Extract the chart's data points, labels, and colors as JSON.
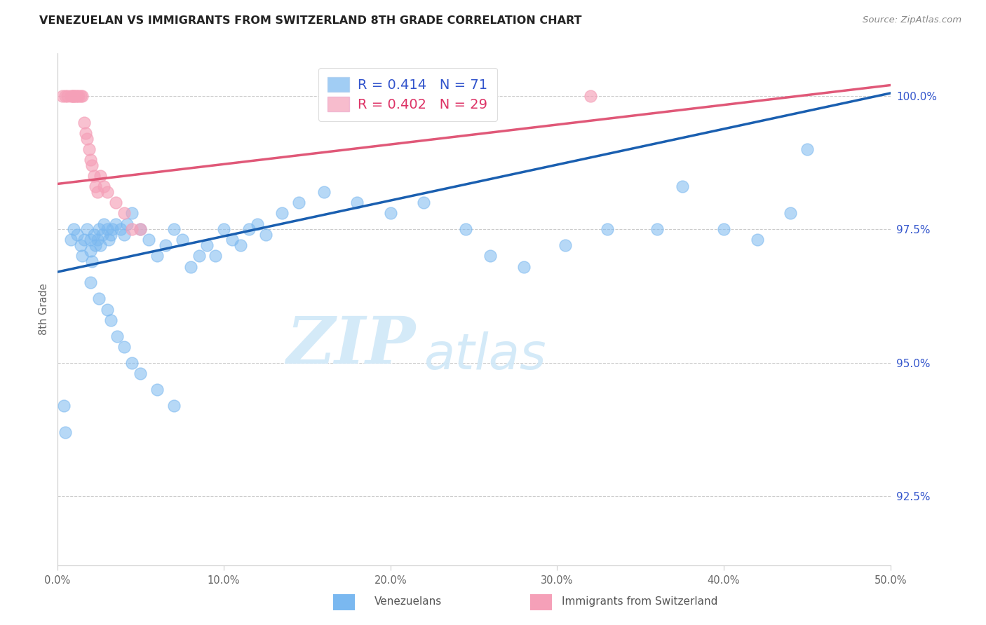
{
  "title": "VENEZUELAN VS IMMIGRANTS FROM SWITZERLAND 8TH GRADE CORRELATION CHART",
  "source": "Source: ZipAtlas.com",
  "ylabel": "8th Grade",
  "y_ticks": [
    92.5,
    95.0,
    97.5,
    100.0
  ],
  "x_min": 0.0,
  "x_max": 50.0,
  "y_min": 91.2,
  "y_max": 100.8,
  "legend_blue_r": "0.414",
  "legend_blue_n": "71",
  "legend_pink_r": "0.402",
  "legend_pink_n": "29",
  "legend_label_blue": "Venezuelans",
  "legend_label_pink": "Immigrants from Switzerland",
  "watermark_zip": "ZIP",
  "watermark_atlas": "atlas",
  "blue_color": "#7ab8f0",
  "pink_color": "#f5a0b8",
  "trend_blue": "#1a5fb0",
  "trend_pink": "#e05878",
  "blue_trend_x0": 0.0,
  "blue_trend_y0": 96.7,
  "blue_trend_x1": 50.0,
  "blue_trend_y1": 100.05,
  "pink_trend_x0": 0.0,
  "pink_trend_y0": 98.35,
  "pink_trend_x1": 50.0,
  "pink_trend_y1": 100.2,
  "blue_points_x": [
    0.4,
    0.5,
    0.8,
    1.0,
    1.2,
    1.4,
    1.5,
    1.6,
    1.8,
    2.0,
    2.0,
    2.1,
    2.2,
    2.3,
    2.4,
    2.5,
    2.6,
    2.7,
    2.8,
    3.0,
    3.1,
    3.2,
    3.3,
    3.5,
    3.8,
    4.0,
    4.2,
    4.5,
    5.0,
    5.5,
    6.0,
    6.5,
    7.0,
    7.5,
    8.0,
    8.5,
    9.0,
    9.5,
    10.0,
    10.5,
    11.0,
    11.5,
    12.0,
    12.5,
    13.5,
    14.5,
    16.0,
    18.0,
    20.0,
    22.0,
    24.5,
    26.0,
    28.0,
    30.5,
    33.0,
    36.0,
    37.5,
    40.0,
    42.0,
    44.0,
    45.0,
    2.0,
    2.5,
    3.0,
    3.2,
    3.6,
    4.0,
    4.5,
    5.0,
    6.0,
    7.0
  ],
  "blue_points_y": [
    94.2,
    93.7,
    97.3,
    97.5,
    97.4,
    97.2,
    97.0,
    97.3,
    97.5,
    97.3,
    97.1,
    96.9,
    97.4,
    97.2,
    97.3,
    97.5,
    97.2,
    97.4,
    97.6,
    97.5,
    97.3,
    97.4,
    97.5,
    97.6,
    97.5,
    97.4,
    97.6,
    97.8,
    97.5,
    97.3,
    97.0,
    97.2,
    97.5,
    97.3,
    96.8,
    97.0,
    97.2,
    97.0,
    97.5,
    97.3,
    97.2,
    97.5,
    97.6,
    97.4,
    97.8,
    98.0,
    98.2,
    98.0,
    97.8,
    98.0,
    97.5,
    97.0,
    96.8,
    97.2,
    97.5,
    97.5,
    98.3,
    97.5,
    97.3,
    97.8,
    99.0,
    96.5,
    96.2,
    96.0,
    95.8,
    95.5,
    95.3,
    95.0,
    94.8,
    94.5,
    94.2
  ],
  "pink_points_x": [
    0.3,
    0.5,
    0.6,
    0.8,
    0.9,
    1.0,
    1.0,
    1.1,
    1.2,
    1.3,
    1.4,
    1.5,
    1.6,
    1.7,
    1.8,
    1.9,
    2.0,
    2.1,
    2.2,
    2.3,
    2.4,
    2.6,
    2.8,
    3.0,
    3.5,
    4.0,
    4.5,
    5.0,
    32.0
  ],
  "pink_points_y": [
    100.0,
    100.0,
    100.0,
    100.0,
    100.0,
    100.0,
    100.0,
    100.0,
    100.0,
    100.0,
    100.0,
    100.0,
    99.5,
    99.3,
    99.2,
    99.0,
    98.8,
    98.7,
    98.5,
    98.3,
    98.2,
    98.5,
    98.3,
    98.2,
    98.0,
    97.8,
    97.5,
    97.5,
    100.0
  ]
}
